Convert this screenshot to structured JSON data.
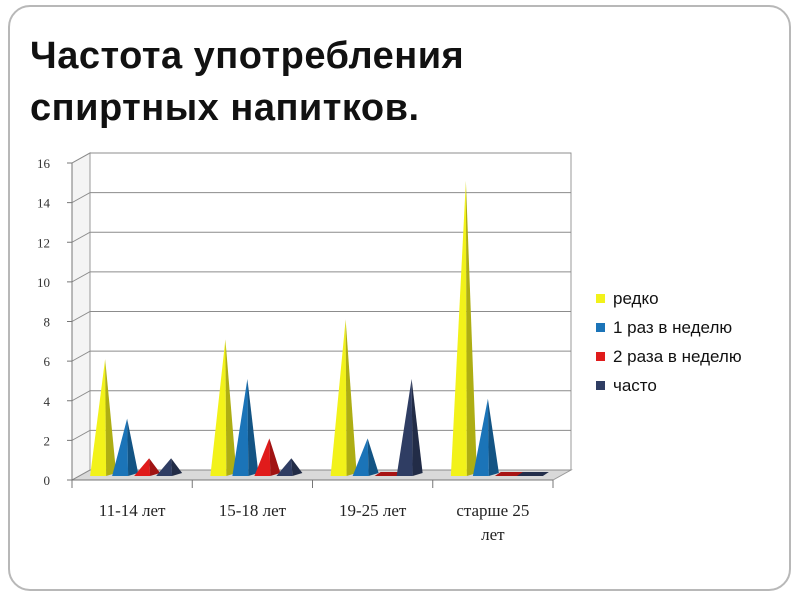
{
  "slide": {
    "title_line1": "Частота употребления",
    "title_line2": "спиртных напитков."
  },
  "chart_data": {
    "type": "bar",
    "style": "3d-pyramid",
    "categories": [
      "11-14 лет",
      "15-18 лет",
      "19-25 лет",
      "старше 25 лет"
    ],
    "category_lines": [
      [
        "11-14 лет"
      ],
      [
        "15-18 лет"
      ],
      [
        "19-25 лет"
      ],
      [
        "старше 25",
        "лет"
      ]
    ],
    "series": [
      {
        "name": "редко",
        "color": "#f2f21a",
        "values": [
          6,
          7,
          8,
          15
        ]
      },
      {
        "name": "1 раз в неделю",
        "color": "#1b74b8",
        "values": [
          3,
          5,
          2,
          4
        ]
      },
      {
        "name": "2 раза в неделю",
        "color": "#e01b1b",
        "values": [
          1,
          2,
          0,
          0
        ]
      },
      {
        "name": "часто",
        "color": "#2f3d63",
        "values": [
          1,
          1,
          5,
          0
        ]
      }
    ],
    "yticks": [
      0,
      2,
      4,
      6,
      8,
      10,
      12,
      14,
      16
    ],
    "ylim": [
      0,
      16
    ],
    "grid": true,
    "legend": "right"
  }
}
